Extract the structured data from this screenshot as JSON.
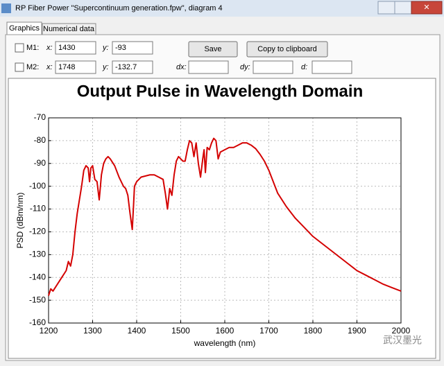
{
  "window": {
    "title": "RP Fiber Power \"Supercontinuum generation.fpw\", diagram 4"
  },
  "tabs": [
    "Graphics",
    "Numerical data"
  ],
  "markers": [
    {
      "label": "M1:",
      "x_label": "x:",
      "x": "1430",
      "y_label": "y:",
      "y": "-93"
    },
    {
      "label": "M2:",
      "x_label": "x:",
      "x": "1748",
      "y_label": "y:",
      "y": "-132.7"
    }
  ],
  "buttons": [
    "Save",
    "Copy to clipboard"
  ],
  "deltas": [
    "dx:",
    "dy:",
    "d:"
  ],
  "watermark": "武汉墨光",
  "chart_data": {
    "type": "line",
    "title": "Output Pulse in Wavelength Domain",
    "xlabel": "wavelength (nm)",
    "ylabel": "PSD (dBm/nm)",
    "x": [
      1200,
      1205,
      1210,
      1220,
      1230,
      1240,
      1245,
      1250,
      1255,
      1260,
      1265,
      1270,
      1275,
      1280,
      1285,
      1290,
      1293,
      1296,
      1300,
      1305,
      1310,
      1315,
      1320,
      1325,
      1330,
      1335,
      1340,
      1350,
      1360,
      1370,
      1375,
      1380,
      1385,
      1390,
      1393,
      1395,
      1400,
      1410,
      1420,
      1430,
      1440,
      1450,
      1460,
      1465,
      1470,
      1475,
      1480,
      1485,
      1490,
      1495,
      1500,
      1505,
      1510,
      1515,
      1520,
      1525,
      1530,
      1535,
      1540,
      1545,
      1550,
      1553,
      1556,
      1560,
      1565,
      1570,
      1575,
      1580,
      1585,
      1590,
      1600,
      1610,
      1620,
      1630,
      1640,
      1650,
      1660,
      1670,
      1680,
      1690,
      1700,
      1720,
      1740,
      1760,
      1780,
      1800,
      1820,
      1840,
      1860,
      1880,
      1900,
      1920,
      1940,
      1960,
      1980,
      2000
    ],
    "series": [
      {
        "name": "PSD",
        "color": "#d40000",
        "values": [
          -148,
          -145,
          -146,
          -143,
          -140,
          -137,
          -133,
          -135,
          -130,
          -120,
          -112,
          -106,
          -100,
          -93,
          -91,
          -92,
          -98,
          -92,
          -91,
          -97,
          -98,
          -106,
          -95,
          -90,
          -88,
          -87,
          -88,
          -91,
          -96,
          -100,
          -101,
          -104,
          -112,
          -119,
          -108,
          -100,
          -98,
          -96,
          -95.5,
          -95,
          -95,
          -96,
          -97,
          -103,
          -110,
          -101,
          -104,
          -95,
          -89,
          -87,
          -88,
          -89,
          -89,
          -84,
          -80,
          -81,
          -87,
          -81,
          -90,
          -96,
          -88,
          -84,
          -94,
          -83,
          -84,
          -81,
          -79,
          -80,
          -88,
          -85,
          -84,
          -83,
          -83,
          -82,
          -81,
          -81,
          -82,
          -83.5,
          -86,
          -89,
          -93,
          -103,
          -109,
          -114,
          -118,
          -122,
          -125,
          -128,
          -131,
          -134,
          -137,
          -139,
          -141,
          -143,
          -144.5,
          -146
        ]
      }
    ],
    "xlim": [
      1200,
      2000
    ],
    "ylim": [
      -160,
      -70
    ],
    "xticks": [
      1200,
      1300,
      1400,
      1500,
      1600,
      1700,
      1800,
      1900,
      2000
    ],
    "yticks": [
      -160,
      -150,
      -140,
      -130,
      -120,
      -110,
      -100,
      -90,
      -80,
      -70
    ],
    "grid": true
  }
}
